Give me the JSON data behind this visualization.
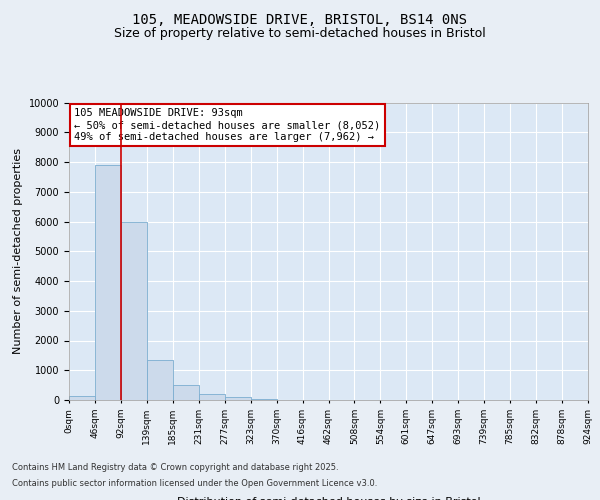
{
  "title_line1": "105, MEADOWSIDE DRIVE, BRISTOL, BS14 0NS",
  "title_line2": "Size of property relative to semi-detached houses in Bristol",
  "xlabel": "Distribution of semi-detached houses by size in Bristol",
  "ylabel": "Number of semi-detached properties",
  "annotation_title": "105 MEADOWSIDE DRIVE: 93sqm",
  "annotation_line2": "← 50% of semi-detached houses are smaller (8,052)",
  "annotation_line3": "49% of semi-detached houses are larger (7,962) →",
  "footer_line1": "Contains HM Land Registry data © Crown copyright and database right 2025.",
  "footer_line2": "Contains public sector information licensed under the Open Government Licence v3.0.",
  "bin_labels": [
    "0sqm",
    "46sqm",
    "92sqm",
    "139sqm",
    "185sqm",
    "231sqm",
    "277sqm",
    "323sqm",
    "370sqm",
    "416sqm",
    "462sqm",
    "508sqm",
    "554sqm",
    "601sqm",
    "647sqm",
    "693sqm",
    "739sqm",
    "785sqm",
    "832sqm",
    "878sqm",
    "924sqm"
  ],
  "bar_values": [
    150,
    7900,
    6000,
    1350,
    500,
    200,
    100,
    30,
    5,
    2,
    1,
    0,
    0,
    0,
    0,
    0,
    0,
    0,
    0,
    0
  ],
  "bar_color": "#ccdaeb",
  "bar_edge_color": "#7badd0",
  "red_line_x": 2,
  "ylim": [
    0,
    10000
  ],
  "yticks": [
    0,
    1000,
    2000,
    3000,
    4000,
    5000,
    6000,
    7000,
    8000,
    9000,
    10000
  ],
  "background_color": "#dce8f5",
  "grid_color": "#ffffff",
  "fig_background": "#e8eef5",
  "annotation_box_color": "#ffffff",
  "annotation_box_edge": "#cc0000",
  "title_fontsize": 10,
  "subtitle_fontsize": 9,
  "axis_label_fontsize": 8,
  "tick_fontsize": 7,
  "annotation_fontsize": 7.5,
  "footer_fontsize": 6
}
